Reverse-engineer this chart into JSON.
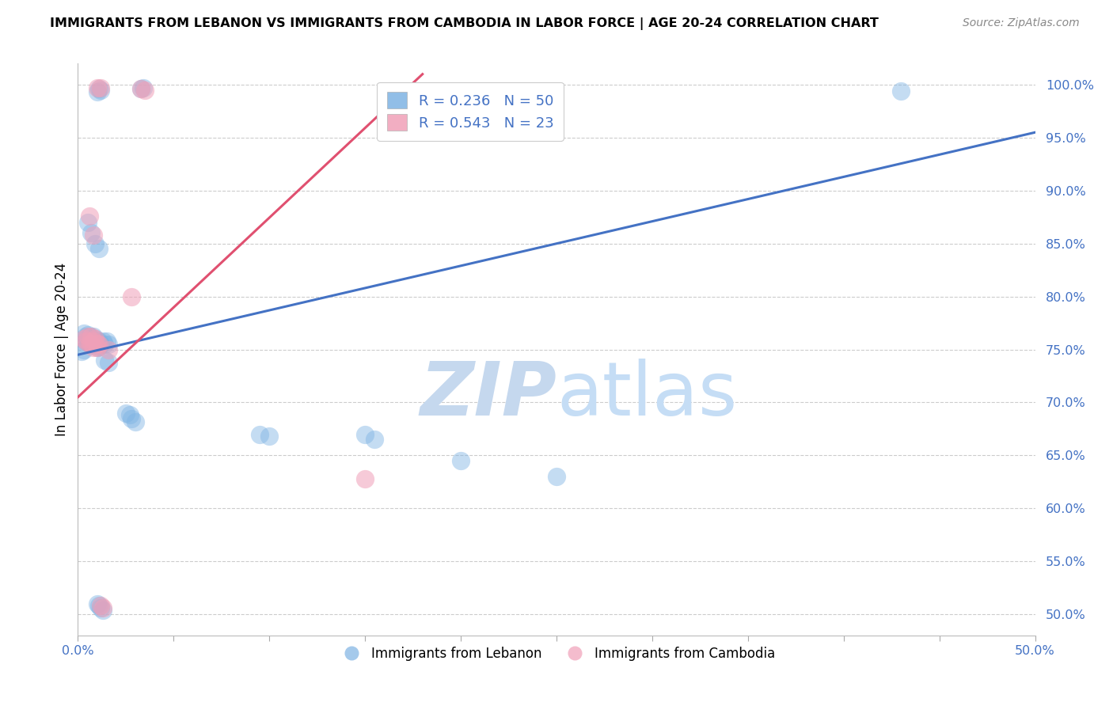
{
  "title": "IMMIGRANTS FROM LEBANON VS IMMIGRANTS FROM CAMBODIA IN LABOR FORCE | AGE 20-24 CORRELATION CHART",
  "source": "Source: ZipAtlas.com",
  "ylabel": "In Labor Force | Age 20-24",
  "xmin": 0.0,
  "xmax": 0.5,
  "ymin": 0.48,
  "ymax": 1.02,
  "R_lebanon": 0.236,
  "N_lebanon": 50,
  "R_cambodia": 0.543,
  "N_cambodia": 23,
  "lebanon_color": "#7eb3e3",
  "cambodia_color": "#f0a0b8",
  "lebanon_line_color": "#4472c4",
  "cambodia_line_color": "#e05070",
  "watermark_zip_color": "#c5d8ee",
  "watermark_atlas_color": "#c5ddf5",
  "background_color": "#ffffff",
  "grid_color": "#cccccc",
  "tick_label_color": "#4472c4",
  "leb_line_x0": 0.0,
  "leb_line_y0": 0.745,
  "leb_line_x1": 0.5,
  "leb_line_y1": 0.955,
  "cam_line_x0": 0.0,
  "cam_line_y0": 0.705,
  "cam_line_x1": 0.18,
  "cam_line_y1": 1.01,
  "leb_x": [
    0.01,
    0.011,
    0.012,
    0.033,
    0.034,
    0.43,
    0.005,
    0.007,
    0.009,
    0.011,
    0.003,
    0.004,
    0.004,
    0.005,
    0.005,
    0.006,
    0.006,
    0.007,
    0.007,
    0.008,
    0.008,
    0.009,
    0.009,
    0.01,
    0.01,
    0.011,
    0.011,
    0.012,
    0.013,
    0.014,
    0.015,
    0.016,
    0.002,
    0.003,
    0.014,
    0.016,
    0.095,
    0.1,
    0.15,
    0.155,
    0.2,
    0.25,
    0.025,
    0.027,
    0.028,
    0.03,
    0.01,
    0.011,
    0.012,
    0.013
  ],
  "leb_y": [
    0.993,
    0.996,
    0.995,
    0.996,
    0.997,
    0.994,
    0.87,
    0.86,
    0.85,
    0.845,
    0.765,
    0.762,
    0.758,
    0.764,
    0.758,
    0.762,
    0.756,
    0.76,
    0.755,
    0.762,
    0.756,
    0.76,
    0.754,
    0.758,
    0.752,
    0.758,
    0.753,
    0.755,
    0.758,
    0.755,
    0.758,
    0.755,
    0.748,
    0.75,
    0.74,
    0.738,
    0.67,
    0.668,
    0.67,
    0.665,
    0.645,
    0.63,
    0.69,
    0.688,
    0.685,
    0.682,
    0.51,
    0.508,
    0.506,
    0.504
  ],
  "cam_x": [
    0.01,
    0.012,
    0.033,
    0.035,
    0.006,
    0.008,
    0.003,
    0.004,
    0.005,
    0.006,
    0.007,
    0.007,
    0.008,
    0.008,
    0.009,
    0.01,
    0.01,
    0.011,
    0.028,
    0.016,
    0.15,
    0.012,
    0.013
  ],
  "cam_y": [
    0.997,
    0.997,
    0.996,
    0.995,
    0.876,
    0.858,
    0.76,
    0.758,
    0.762,
    0.756,
    0.762,
    0.756,
    0.758,
    0.752,
    0.76,
    0.756,
    0.752,
    0.755,
    0.8,
    0.75,
    0.628,
    0.508,
    0.506
  ]
}
